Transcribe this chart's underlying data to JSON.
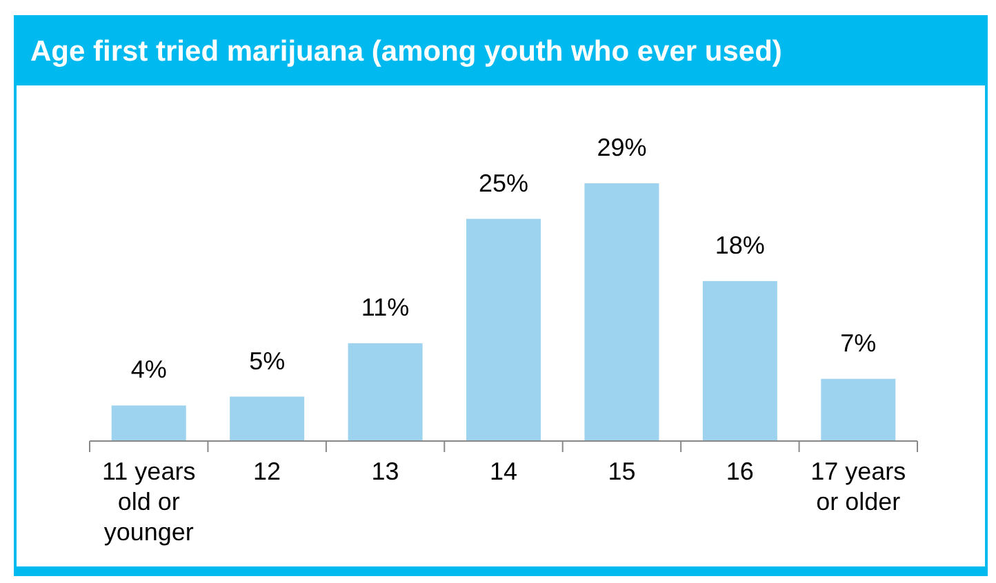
{
  "chart_data": {
    "type": "bar",
    "title": "Age first tried marijuana (among youth who ever used)",
    "categories": [
      "11 years old or younger",
      "12",
      "13",
      "14",
      "15",
      "16",
      "17 years or older"
    ],
    "values": [
      4,
      5,
      11,
      25,
      29,
      18,
      7
    ],
    "value_labels": [
      "4%",
      "5%",
      "11%",
      "25%",
      "29%",
      "18%",
      "7%"
    ],
    "color": "#9dd3ee",
    "relative": false
  }
}
